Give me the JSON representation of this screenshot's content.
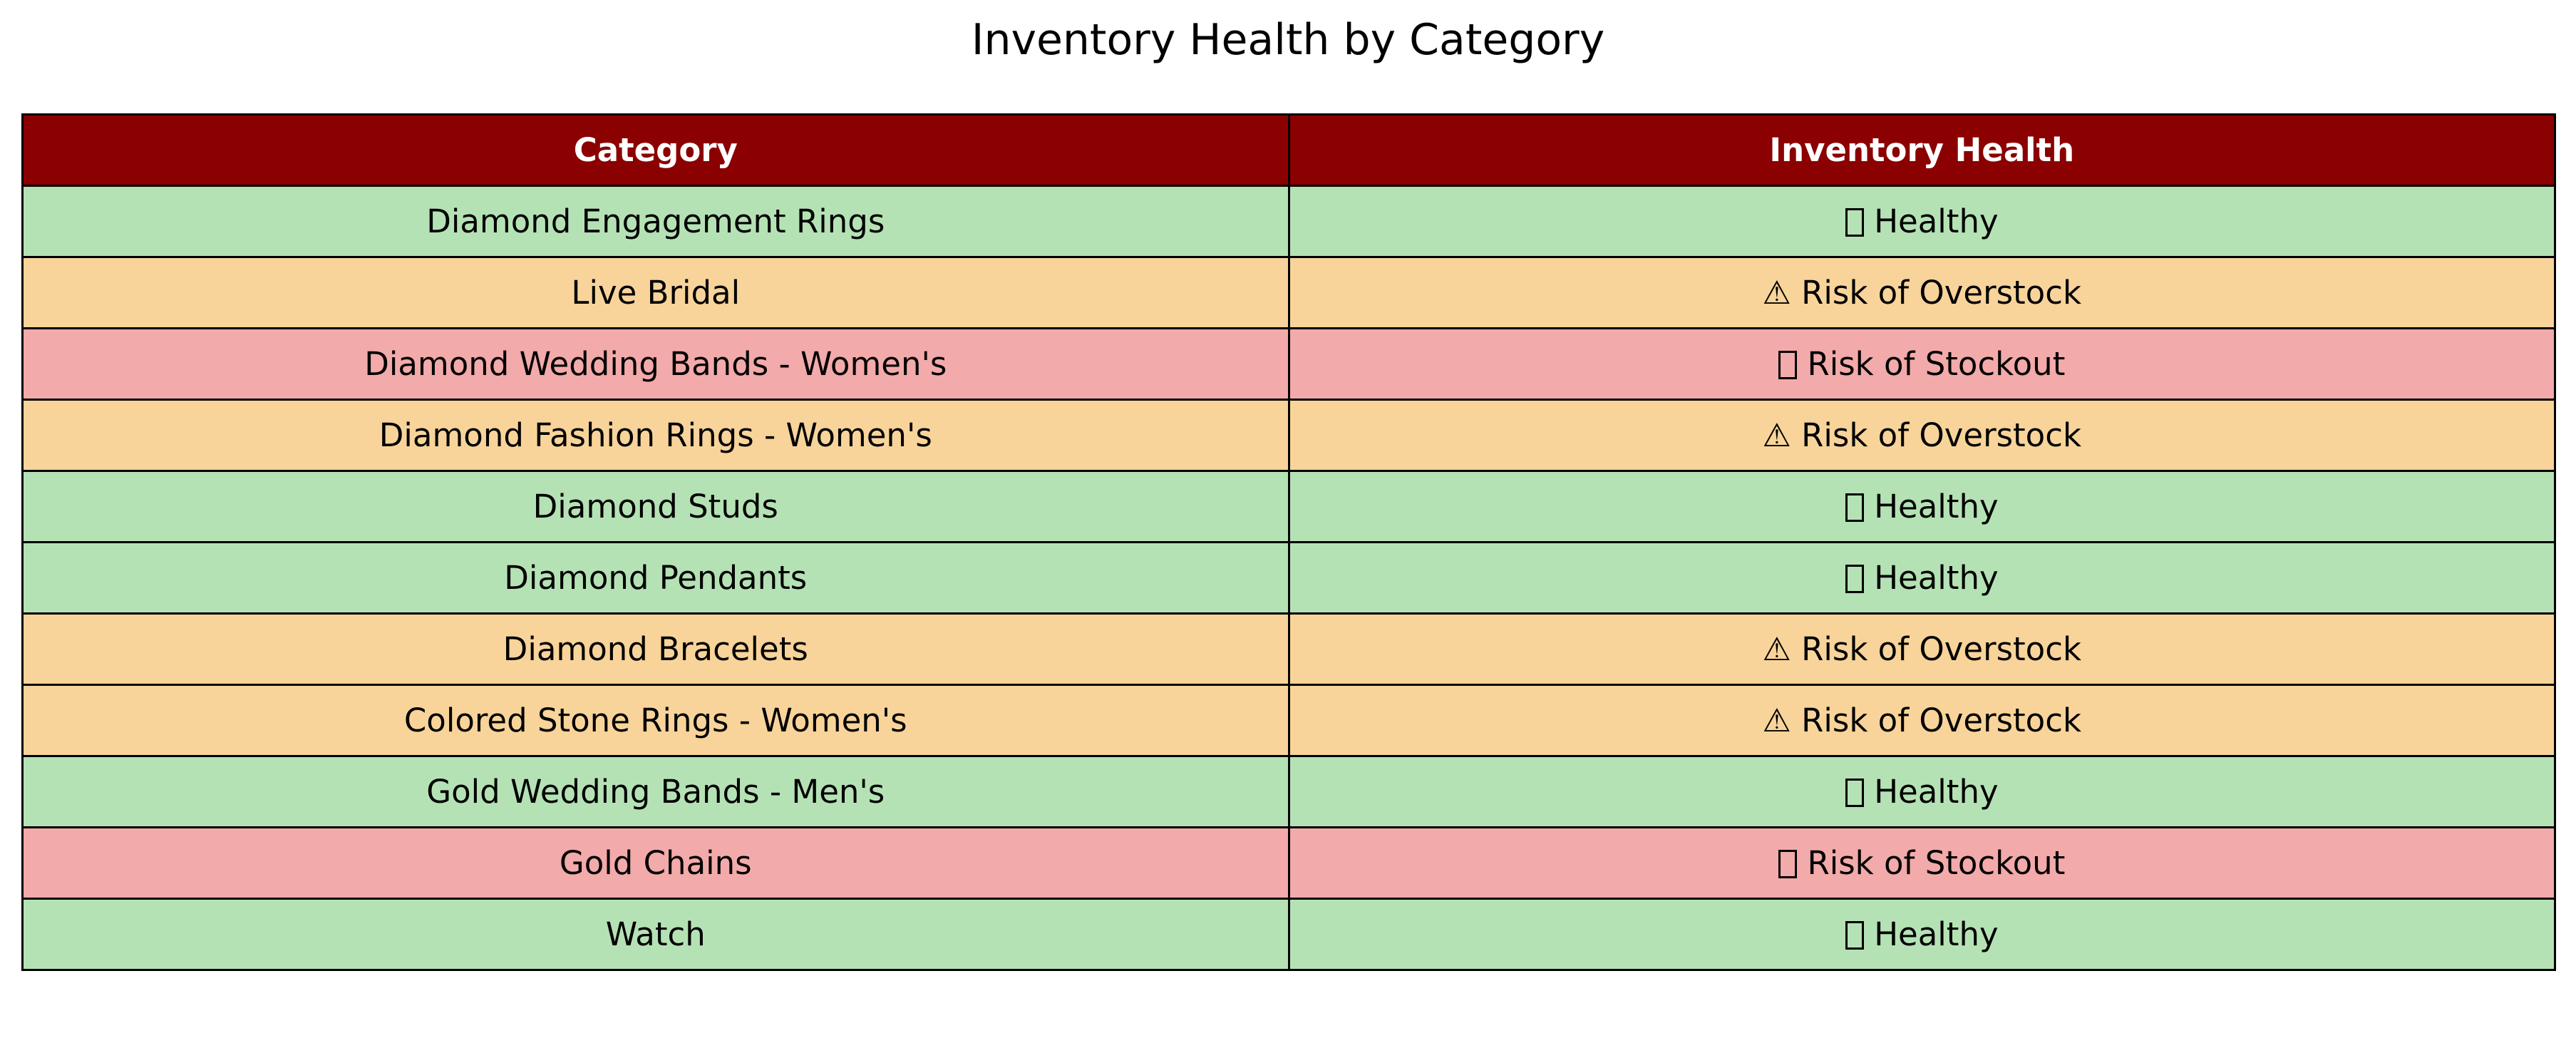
{
  "chart_data": {
    "type": "table",
    "title": "Inventory Health by Category",
    "columns": [
      "Category",
      "Inventory Health"
    ],
    "header_color": "#8b0000",
    "header_text_color": "#ffffff",
    "status_colors": {
      "Healthy": "#b5e2b5",
      "Risk of Overstock": "#f8d49a",
      "Risk of Stockout": "#f3aaaa"
    },
    "status_icons": {
      "Healthy": "missing-glyph-box-icon",
      "Risk of Overstock": "warning-icon",
      "Risk of Stockout": "missing-glyph-box-icon"
    },
    "rows": [
      {
        "category": "Diamond Engagement Rings",
        "health": "Healthy"
      },
      {
        "category": "Live Bridal",
        "health": "Risk of Overstock"
      },
      {
        "category": "Diamond Wedding Bands - Women's",
        "health": "Risk of Stockout"
      },
      {
        "category": "Diamond Fashion Rings - Women's",
        "health": "Risk of Overstock"
      },
      {
        "category": "Diamond Studs",
        "health": "Healthy"
      },
      {
        "category": "Diamond Pendants",
        "health": "Healthy"
      },
      {
        "category": "Diamond Bracelets",
        "health": "Risk of Overstock"
      },
      {
        "category": "Colored Stone Rings - Women's",
        "health": "Risk of Overstock"
      },
      {
        "category": "Gold Wedding Bands - Men's",
        "health": "Healthy"
      },
      {
        "category": "Gold Chains",
        "health": "Risk of Stockout"
      },
      {
        "category": "Watch",
        "health": "Healthy"
      }
    ]
  }
}
